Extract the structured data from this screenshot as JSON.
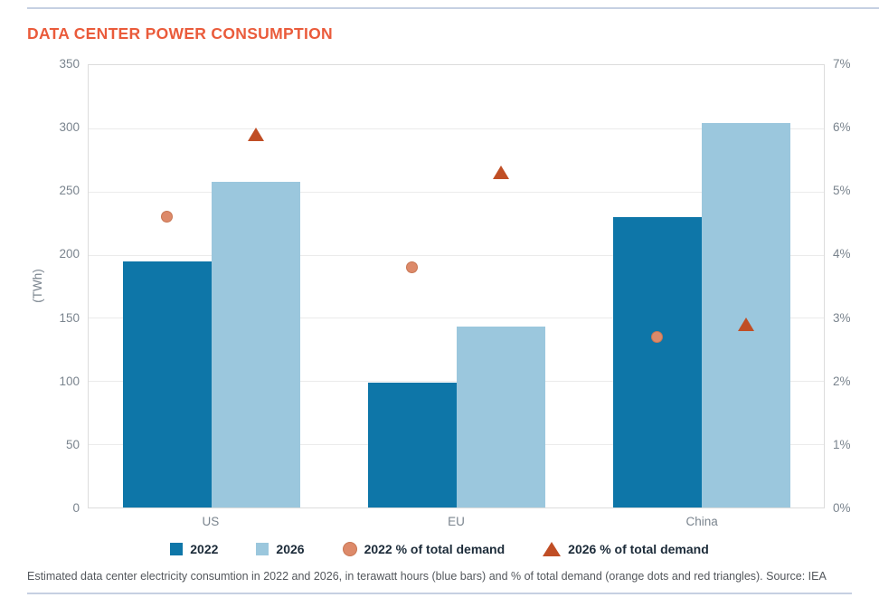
{
  "title": "DATA CENTER POWER CONSUMPTION",
  "caption": "Estimated data center electricity consumtion in 2022 and 2026, in terawatt hours (blue bars) and % of total demand (orange dots and red triangles). Source: IEA",
  "colors": {
    "title": "#EA5B3B",
    "bar_2022": "#0E76A8",
    "bar_2026": "#9BC7DD",
    "dot_2022_pct": "#DD8A6A",
    "triangle_2026_pct": "#C04E25",
    "divider": "#C6D0E2",
    "axis_text": "#7A848E",
    "legend_text": "#1C2B39"
  },
  "chart_data": {
    "type": "bar",
    "categories": [
      "US",
      "EU",
      "China"
    ],
    "series": [
      {
        "name": "2022",
        "type": "bar",
        "axis": "left",
        "color": "#0E76A8",
        "values": [
          195,
          99,
          230
        ]
      },
      {
        "name": "2026",
        "type": "bar",
        "axis": "left",
        "color": "#9BC7DD",
        "values": [
          258,
          143,
          304
        ]
      },
      {
        "name": "2022 % of total demand",
        "type": "scatter",
        "marker": "circle",
        "axis": "right",
        "color": "#DD8A6A",
        "values": [
          4.6,
          3.8,
          2.7
        ]
      },
      {
        "name": "2026 % of total demand",
        "type": "scatter",
        "marker": "triangle",
        "axis": "right",
        "color": "#C04E25",
        "values": [
          5.9,
          5.3,
          2.9
        ]
      }
    ],
    "left_axis": {
      "label": "(TWh)",
      "min": 0,
      "max": 350,
      "ticks": [
        "0",
        "50",
        "100",
        "150",
        "200",
        "250",
        "300",
        "350"
      ]
    },
    "right_axis": {
      "min": 0,
      "max": 7,
      "ticks": [
        "0%",
        "1%",
        "2%",
        "3%",
        "4%",
        "5%",
        "6%",
        "7%"
      ]
    },
    "grid": true,
    "legend_position": "bottom"
  }
}
